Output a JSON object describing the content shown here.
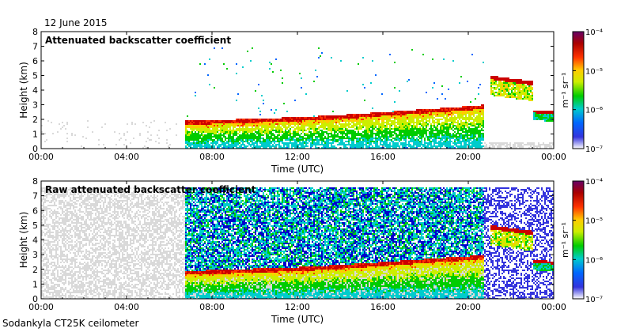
{
  "header": {
    "date": "12 June 2015"
  },
  "footer": {
    "instrument": "Sodankyla CT25K ceilometer"
  },
  "colors": {
    "scale": [
      "#ffffff",
      "#0000cc",
      "#0066ff",
      "#00cccc",
      "#00cc00",
      "#ccee00",
      "#ffcc00",
      "#ff3300",
      "#aa0000",
      "#660066"
    ],
    "noise_gray": "#d9d9d9"
  },
  "chart_data": [
    {
      "type": "heatmap",
      "title": "Attenuated backscatter coefficient",
      "xlabel": "Time (UTC)",
      "ylabel": "Height (km)",
      "x_ticks": [
        "00:00",
        "04:00",
        "08:00",
        "12:00",
        "16:00",
        "20:00",
        "00:00"
      ],
      "y_ticks": [
        "0",
        "1",
        "2",
        "3",
        "4",
        "5",
        "6",
        "7",
        "8"
      ],
      "xlim_hours": [
        0,
        24
      ],
      "ylim_km": [
        0,
        8
      ],
      "colorbar": {
        "unit_label": "m⁻¹ sr⁻¹",
        "tick_labels": [
          "10⁻⁷",
          "10⁻⁶",
          "10⁻⁵",
          "10⁻⁴"
        ],
        "scale": "log",
        "range": [
          1e-07,
          0.0001
        ]
      },
      "cloud_base_km": {
        "hours": [
          6.7,
          8,
          10,
          12,
          14,
          16,
          18,
          19,
          20,
          20.7
        ],
        "heights": [
          1.8,
          1.85,
          1.95,
          2.05,
          2.2,
          2.4,
          2.6,
          2.7,
          2.8,
          2.9
        ]
      },
      "upper_layer_km": {
        "hours": [
          21.0,
          21.5,
          22.0,
          22.5,
          23.0
        ],
        "heights": [
          4.9,
          4.8,
          4.7,
          4.6,
          4.5
        ]
      },
      "late_layer_km": {
        "hours": [
          23.0,
          24.0
        ],
        "heights": [
          2.6,
          2.5
        ]
      }
    },
    {
      "type": "heatmap",
      "title": "Raw attenuated backscatter coefficient",
      "xlabel": "Time (UTC)",
      "ylabel": "Height (km)",
      "x_ticks": [
        "00:00",
        "04:00",
        "08:00",
        "12:00",
        "16:00",
        "20:00",
        "00:00"
      ],
      "y_ticks": [
        "0",
        "1",
        "2",
        "3",
        "4",
        "5",
        "6",
        "7",
        "8"
      ],
      "xlim_hours": [
        0,
        24
      ],
      "ylim_km": [
        0,
        8
      ],
      "colorbar": {
        "unit_label": "m⁻¹ sr⁻¹",
        "tick_labels": [
          "10⁻⁷",
          "10⁻⁶",
          "10⁻⁵",
          "10⁻⁴"
        ],
        "scale": "log",
        "range": [
          1e-07,
          0.0001
        ]
      },
      "cloud_base_km": {
        "hours": [
          6.7,
          8,
          10,
          12,
          14,
          16,
          18,
          19,
          20,
          20.7
        ],
        "heights": [
          1.8,
          1.85,
          1.95,
          2.05,
          2.2,
          2.4,
          2.6,
          2.7,
          2.8,
          2.9
        ]
      },
      "upper_layer_km": {
        "hours": [
          21.0,
          21.5,
          22.0,
          22.5,
          23.0
        ],
        "heights": [
          4.9,
          4.8,
          4.7,
          4.6,
          4.5
        ]
      },
      "late_layer_km": {
        "hours": [
          23.0,
          24.0
        ],
        "heights": [
          2.6,
          2.5
        ]
      }
    }
  ]
}
